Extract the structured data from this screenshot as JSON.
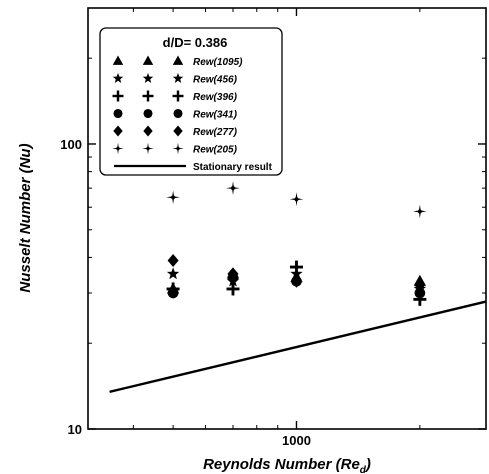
{
  "chart_data": {
    "type": "scatter",
    "title": "",
    "xlabel": "Reynolds Number (Re_d)",
    "xlabel_main": "Reynolds Number (Re",
    "xlabel_sub": "d",
    "xlabel_close": ")",
    "ylabel": "Nusselt Number (Nu)",
    "xscale": "log",
    "yscale": "log",
    "xlim": [
      310,
      2900
    ],
    "ylim": [
      10,
      300
    ],
    "x_ticks": [
      {
        "value": 1000,
        "label": "1000"
      }
    ],
    "y_ticks": [
      {
        "value": 10,
        "label": "10"
      },
      {
        "value": 100,
        "label": "100"
      }
    ],
    "grid": false,
    "legend_position": "top-left",
    "legend_title": "d/D= 0.386",
    "series": [
      {
        "name": "Rew(1095)",
        "marker": "triangle",
        "x": [
          500,
          700,
          1000,
          2000
        ],
        "y": [
          31,
          35,
          34,
          33
        ]
      },
      {
        "name": "Rew(456)",
        "marker": "star",
        "x": [
          500,
          700,
          1000,
          2000
        ],
        "y": [
          35,
          33,
          35,
          31
        ]
      },
      {
        "name": "Rew(396)",
        "marker": "plus",
        "x": [
          500,
          700,
          1000,
          2000
        ],
        "y": [
          31,
          31,
          37,
          28.5
        ]
      },
      {
        "name": "Rew(341)",
        "marker": "circle",
        "x": [
          500,
          700,
          1000,
          2000
        ],
        "y": [
          30,
          34,
          33,
          30
        ]
      },
      {
        "name": "Rew(277)",
        "marker": "diamond",
        "x": [
          500,
          700,
          1000,
          2000
        ],
        "y": [
          39,
          35,
          33,
          32
        ]
      },
      {
        "name": "Rew(205)",
        "marker": "sparkle",
        "x": [
          500,
          700,
          1000,
          2000
        ],
        "y": [
          65,
          70,
          64,
          58
        ]
      },
      {
        "name": "Stationary result",
        "marker": "line",
        "x": [
          350,
          2900
        ],
        "y": [
          13.5,
          28
        ]
      }
    ]
  }
}
